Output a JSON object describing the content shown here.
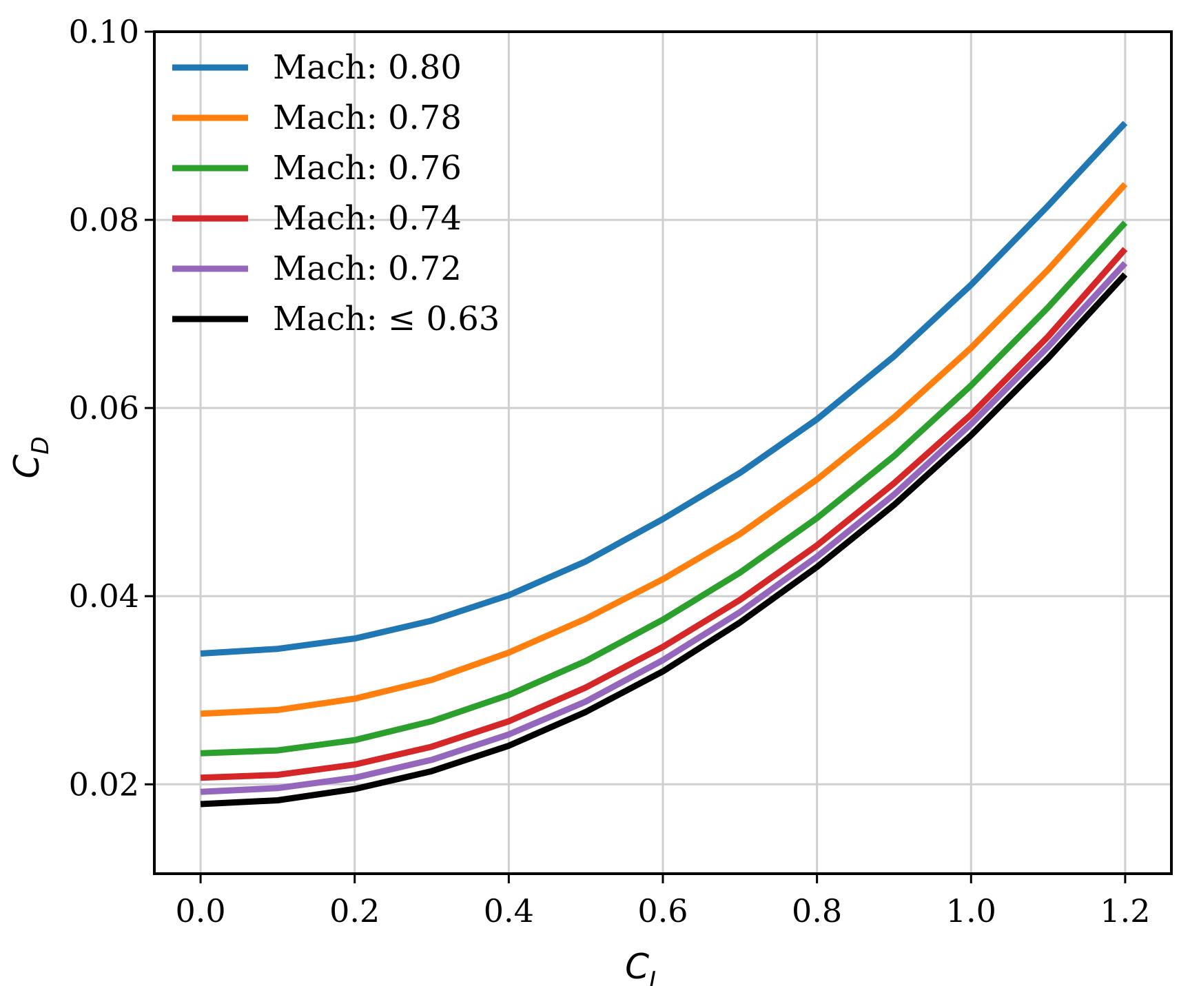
{
  "chart_data": {
    "type": "line",
    "title": "",
    "xlabel": "C",
    "xlabel_sub": "L",
    "ylabel": "C",
    "ylabel_sub": "D",
    "xlim": [
      -0.06,
      1.26
    ],
    "ylim": [
      0.0105,
      0.1
    ],
    "xticks": [
      0.0,
      0.2,
      0.4,
      0.6,
      0.8,
      1.0,
      1.2
    ],
    "xtick_labels": [
      "0.0",
      "0.2",
      "0.4",
      "0.6",
      "0.8",
      "1.0",
      "1.2"
    ],
    "yticks": [
      0.02,
      0.04,
      0.06,
      0.08,
      0.1
    ],
    "ytick_labels": [
      "0.02",
      "0.04",
      "0.06",
      "0.08",
      "0.10"
    ],
    "grid": true,
    "legend_position": "top-left",
    "x": [
      0.0,
      0.1,
      0.2,
      0.3,
      0.4,
      0.5,
      0.6,
      0.7,
      0.8,
      0.9,
      1.0,
      1.1,
      1.2
    ],
    "series": [
      {
        "name": "Mach: 0.80",
        "color": "#1f77b4",
        "values": [
          0.0339,
          0.0344,
          0.0355,
          0.0374,
          0.0401,
          0.0437,
          0.0482,
          0.0531,
          0.0588,
          0.0655,
          0.0731,
          0.0815,
          0.0903
        ]
      },
      {
        "name": "Mach: 0.78",
        "color": "#ff7f0e",
        "values": [
          0.0275,
          0.0279,
          0.0291,
          0.0311,
          0.034,
          0.0376,
          0.0418,
          0.0466,
          0.0524,
          0.059,
          0.0664,
          0.0747,
          0.0838
        ]
      },
      {
        "name": "Mach: 0.76",
        "color": "#2ca02c",
        "values": [
          0.0233,
          0.0236,
          0.0247,
          0.0267,
          0.0295,
          0.0331,
          0.0375,
          0.0425,
          0.0483,
          0.0549,
          0.0624,
          0.0707,
          0.0797
        ]
      },
      {
        "name": "Mach: 0.74",
        "color": "#d62728",
        "values": [
          0.0207,
          0.021,
          0.0221,
          0.024,
          0.0267,
          0.0303,
          0.0346,
          0.0396,
          0.0454,
          0.052,
          0.0593,
          0.0676,
          0.0769
        ]
      },
      {
        "name": "Mach: 0.72",
        "color": "#9467bd",
        "values": [
          0.0192,
          0.0196,
          0.0207,
          0.0226,
          0.0253,
          0.0288,
          0.0332,
          0.0383,
          0.0442,
          0.0508,
          0.0583,
          0.0665,
          0.0754
        ]
      },
      {
        "name": "Mach: ≤ 0.63",
        "color": "#000000",
        "values": [
          0.0179,
          0.0183,
          0.0195,
          0.0214,
          0.0241,
          0.0277,
          0.032,
          0.0372,
          0.0431,
          0.0497,
          0.0571,
          0.0653,
          0.0742
        ]
      }
    ]
  }
}
